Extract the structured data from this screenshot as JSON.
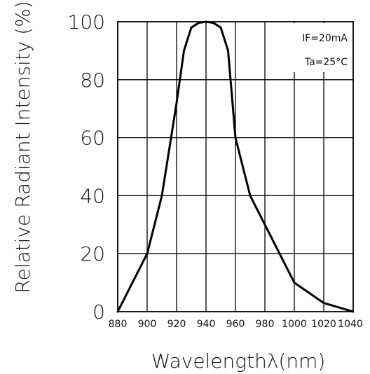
{
  "chart_data": {
    "type": "line",
    "title": "",
    "xlabel": "Wavelengthλ(nm)",
    "ylabel": "Relative Radiant Intensity (%)",
    "xlim": [
      880,
      1040
    ],
    "ylim": [
      0,
      100
    ],
    "x_ticks": [
      "880",
      "900",
      "920",
      "940",
      "960",
      "980",
      "1000",
      "1020",
      "1040"
    ],
    "y_ticks": [
      "0",
      "20",
      "40",
      "60",
      "80",
      "100"
    ],
    "grid": true,
    "annotations": [
      "IF=20mA",
      "Ta=25°C"
    ],
    "series": [
      {
        "x": [
          880,
          890,
          900,
          910,
          920,
          925,
          930,
          935,
          940,
          945,
          950,
          955,
          960,
          970,
          980,
          990,
          1000,
          1020,
          1040
        ],
        "y": [
          0,
          10,
          20,
          40,
          72,
          90,
          98,
          99.6,
          100,
          99.6,
          98,
          90,
          60,
          40,
          30,
          20,
          10,
          3,
          0
        ]
      }
    ],
    "line_color": "#000000"
  }
}
